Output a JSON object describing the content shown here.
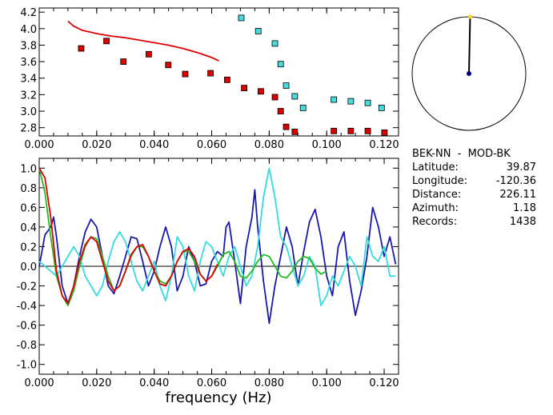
{
  "station_info": {
    "station": "BEK-NN  -  MOD-BK",
    "rows": [
      {
        "label": "Latitude:",
        "value": "39.87"
      },
      {
        "label": "Longitude:",
        "value": "-120.36"
      },
      {
        "label": "Distance:",
        "value": "226.11"
      },
      {
        "label": "Azimuth:",
        "value": "1.18"
      },
      {
        "label": "Records:",
        "value": "1438"
      }
    ]
  },
  "compass": {
    "azimuth_deg": 1.18,
    "colors": {
      "ring": "#000000",
      "needle": "#000000",
      "tip": "#ffd700",
      "center": "#000080"
    }
  },
  "colors": {
    "red": "#dd0000",
    "cyan": "#33dddd",
    "blue": "#1a1aaa",
    "green": "#22bb22",
    "marker_red": "#dd0000",
    "marker_cyan": "#44dddd"
  },
  "chart_data": [
    {
      "type": "scatter",
      "title": "",
      "xlabel": "",
      "ylabel": "",
      "xlim": [
        0,
        0.125
      ],
      "ylim": [
        2.7,
        4.25
      ],
      "xticks": [
        "0.000",
        "0.020",
        "0.040",
        "0.060",
        "0.080",
        "0.100",
        "0.120"
      ],
      "yticks": [
        "2.8",
        "3.0",
        "3.2",
        "3.4",
        "3.6",
        "3.8",
        "4.0",
        "4.2"
      ],
      "series": [
        {
          "type": "line",
          "color": "red",
          "x": [
            0.01,
            0.012,
            0.015,
            0.02,
            0.025,
            0.03,
            0.035,
            0.04,
            0.045,
            0.05,
            0.055,
            0.06,
            0.0625
          ],
          "y": [
            4.09,
            4.03,
            3.98,
            3.94,
            3.91,
            3.89,
            3.86,
            3.83,
            3.8,
            3.76,
            3.71,
            3.65,
            3.61
          ]
        },
        {
          "type": "markers",
          "color": "marker_red",
          "x": [
            0.0146,
            0.0234,
            0.0293,
            0.0381,
            0.0449,
            0.0508,
            0.0596,
            0.0654,
            0.0713,
            0.0771,
            0.082,
            0.084,
            0.0859,
            0.0889,
            0.1025,
            0.1084,
            0.1143,
            0.1201
          ],
          "y": [
            3.76,
            3.85,
            3.6,
            3.69,
            3.56,
            3.45,
            3.46,
            3.38,
            3.28,
            3.24,
            3.17,
            3.0,
            2.81,
            2.75,
            2.76,
            2.76,
            2.76,
            2.74
          ]
        },
        {
          "type": "markers",
          "color": "marker_cyan",
          "x": [
            0.0703,
            0.0762,
            0.082,
            0.084,
            0.0859,
            0.0889,
            0.0918,
            0.1025,
            0.1084,
            0.1143,
            0.1191
          ],
          "y": [
            4.13,
            3.97,
            3.82,
            3.57,
            3.31,
            3.18,
            3.04,
            3.14,
            3.12,
            3.1,
            3.04
          ]
        }
      ]
    },
    {
      "type": "line",
      "title": "",
      "xlabel": "frequency (Hz)",
      "ylabel": "",
      "xlim": [
        0,
        0.125
      ],
      "ylim": [
        -1.1,
        1.1
      ],
      "xticks": [
        "0.000",
        "0.020",
        "0.040",
        "0.060",
        "0.080",
        "0.100",
        "0.120"
      ],
      "yticks": [
        "1.0",
        "0.8",
        "0.6",
        "0.4",
        "0.2",
        "0.0",
        "-0.2",
        "-0.4",
        "-0.6",
        "-0.8",
        "-1.0"
      ],
      "zero_line": true,
      "series": [
        {
          "color": "blue",
          "x": [
            0.0,
            0.002,
            0.004,
            0.005,
            0.006,
            0.008,
            0.01,
            0.012,
            0.014,
            0.016,
            0.018,
            0.02,
            0.022,
            0.024,
            0.026,
            0.028,
            0.03,
            0.032,
            0.034,
            0.036,
            0.038,
            0.04,
            0.042,
            0.044,
            0.046,
            0.048,
            0.05,
            0.052,
            0.054,
            0.056,
            0.058,
            0.06,
            0.062,
            0.064,
            0.065,
            0.066,
            0.068,
            0.07,
            0.072,
            0.074,
            0.075,
            0.076,
            0.078,
            0.08,
            0.082,
            0.084,
            0.086,
            0.088,
            0.09,
            0.092,
            0.094,
            0.096,
            0.098,
            0.1,
            0.102,
            0.104,
            0.106,
            0.108,
            0.11,
            0.112,
            0.114,
            0.116,
            0.118,
            0.12,
            0.122,
            0.124
          ],
          "y": [
            0.0,
            0.32,
            0.4,
            0.5,
            0.3,
            -0.2,
            -0.38,
            -0.2,
            0.1,
            0.35,
            0.48,
            0.4,
            0.1,
            -0.2,
            -0.28,
            -0.1,
            0.1,
            0.3,
            0.28,
            0.05,
            -0.2,
            -0.05,
            0.2,
            0.4,
            0.2,
            -0.25,
            -0.1,
            0.2,
            0.05,
            -0.2,
            -0.18,
            0.05,
            0.15,
            0.1,
            0.4,
            0.45,
            0.05,
            -0.38,
            0.2,
            0.5,
            0.78,
            0.4,
            -0.15,
            -0.58,
            -0.2,
            0.1,
            0.4,
            0.2,
            -0.2,
            0.15,
            0.45,
            0.58,
            0.3,
            -0.1,
            -0.3,
            0.2,
            0.35,
            -0.15,
            -0.5,
            -0.25,
            0.1,
            0.6,
            0.4,
            0.1,
            0.3,
            0.02
          ]
        },
        {
          "color": "cyan",
          "x": [
            0.0,
            0.002,
            0.004,
            0.006,
            0.008,
            0.01,
            0.012,
            0.014,
            0.016,
            0.018,
            0.02,
            0.022,
            0.024,
            0.026,
            0.028,
            0.03,
            0.032,
            0.034,
            0.036,
            0.038,
            0.04,
            0.042,
            0.044,
            0.046,
            0.048,
            0.05,
            0.052,
            0.054,
            0.056,
            0.058,
            0.06,
            0.062,
            0.064,
            0.066,
            0.068,
            0.07,
            0.072,
            0.074,
            0.076,
            0.078,
            0.08,
            0.082,
            0.084,
            0.086,
            0.088,
            0.09,
            0.092,
            0.094,
            0.096,
            0.098,
            0.1,
            0.102,
            0.104,
            0.106,
            0.108,
            0.11,
            0.112,
            0.114,
            0.116,
            0.118,
            0.12,
            0.122,
            0.124
          ],
          "y": [
            0.05,
            0.0,
            -0.05,
            -0.1,
            0.0,
            0.1,
            0.2,
            0.1,
            -0.1,
            -0.2,
            -0.3,
            -0.2,
            0.05,
            0.25,
            0.35,
            0.25,
            0.05,
            -0.15,
            -0.25,
            -0.1,
            0.05,
            -0.2,
            -0.35,
            -0.1,
            0.3,
            0.2,
            -0.1,
            -0.25,
            0.05,
            0.25,
            0.2,
            0.05,
            -0.1,
            0.1,
            0.2,
            0.0,
            -0.2,
            -0.1,
            0.2,
            0.7,
            1.0,
            0.7,
            0.3,
            0.2,
            0.0,
            -0.2,
            -0.1,
            0.1,
            0.0,
            -0.4,
            -0.3,
            -0.1,
            -0.2,
            -0.05,
            0.1,
            0.0,
            -0.2,
            0.3,
            0.1,
            0.05,
            0.2,
            -0.1,
            -0.1
          ]
        },
        {
          "color": "green",
          "x": [
            0.0,
            0.002,
            0.004,
            0.006,
            0.008,
            0.01,
            0.012,
            0.014,
            0.016,
            0.018,
            0.02,
            0.022,
            0.024,
            0.026,
            0.028,
            0.03,
            0.032,
            0.034,
            0.036,
            0.038,
            0.04,
            0.042,
            0.044,
            0.046,
            0.048,
            0.05,
            0.052,
            0.054,
            0.056,
            0.058,
            0.06,
            0.062,
            0.064,
            0.066,
            0.068,
            0.07,
            0.072,
            0.074,
            0.076,
            0.078,
            0.08,
            0.082,
            0.084,
            0.086,
            0.088,
            0.09,
            0.092,
            0.094,
            0.096,
            0.098,
            0.1
          ],
          "y": [
            1.0,
            0.75,
            0.3,
            -0.1,
            -0.3,
            -0.4,
            -0.25,
            0.0,
            0.2,
            0.3,
            0.28,
            0.1,
            -0.1,
            -0.25,
            -0.2,
            -0.05,
            0.1,
            0.2,
            0.2,
            0.1,
            -0.05,
            -0.15,
            -0.18,
            -0.1,
            0.05,
            0.15,
            0.15,
            0.05,
            -0.08,
            -0.15,
            -0.1,
            0.0,
            0.12,
            0.15,
            0.05,
            -0.1,
            -0.12,
            -0.05,
            0.05,
            0.12,
            0.1,
            0.0,
            -0.1,
            -0.12,
            -0.05,
            0.05,
            0.1,
            0.08,
            -0.02,
            -0.08,
            -0.05
          ]
        },
        {
          "color": "red",
          "x": [
            0.0,
            0.002,
            0.004,
            0.006,
            0.008,
            0.01,
            0.012,
            0.014,
            0.016,
            0.018,
            0.02,
            0.022,
            0.024,
            0.026,
            0.028,
            0.03,
            0.032,
            0.034,
            0.036,
            0.038,
            0.04,
            0.042,
            0.044,
            0.046,
            0.048,
            0.05,
            0.052,
            0.054,
            0.056,
            0.058,
            0.06,
            0.062
          ],
          "y": [
            1.0,
            0.9,
            0.5,
            -0.05,
            -0.3,
            -0.38,
            -0.2,
            0.05,
            0.22,
            0.3,
            0.25,
            0.05,
            -0.15,
            -0.25,
            -0.2,
            -0.05,
            0.12,
            0.2,
            0.22,
            0.1,
            -0.05,
            -0.18,
            -0.2,
            -0.1,
            0.05,
            0.15,
            0.18,
            0.1,
            -0.08,
            -0.15,
            -0.1,
            0.02
          ]
        }
      ]
    }
  ]
}
